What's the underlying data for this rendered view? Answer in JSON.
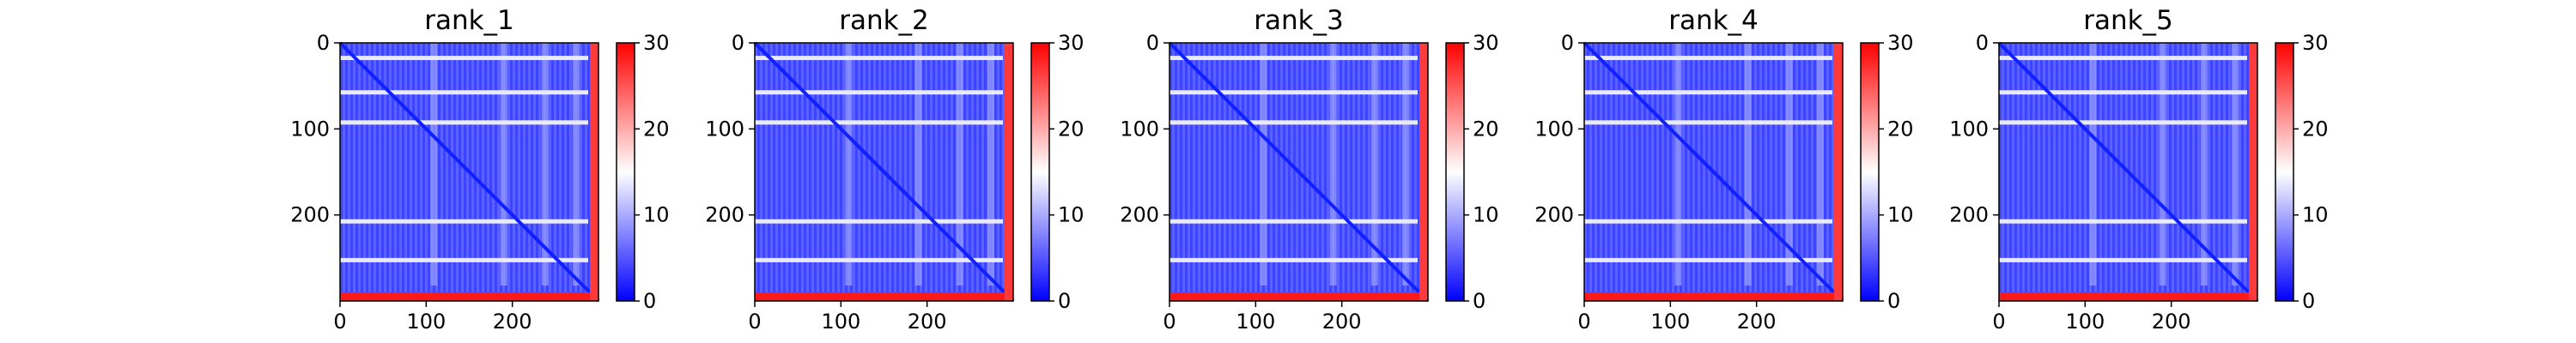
{
  "figure": {
    "background": "#ffffff"
  },
  "colorbar": {
    "ticks": [
      "0",
      "10",
      "20",
      "30"
    ],
    "colors": [
      "#0000ff",
      "#ffffff",
      "#ff0000"
    ],
    "range": [
      0,
      30
    ]
  },
  "panels": [
    {
      "title": "rank_1"
    },
    {
      "title": "rank_2"
    },
    {
      "title": "rank_3"
    },
    {
      "title": "rank_4"
    },
    {
      "title": "rank_5"
    }
  ],
  "chart_data": {
    "type": "heatmap",
    "matrix_size": 300,
    "x_ticks": [
      "0",
      "100",
      "200"
    ],
    "y_ticks": [
      "0",
      "100",
      "200"
    ],
    "x_tick_values": [
      0,
      100,
      200
    ],
    "y_tick_values": [
      0,
      100,
      200
    ],
    "colormap": "bwr",
    "vmin": 0,
    "vmax": 30,
    "panels": [
      {
        "title": "rank_1",
        "bright_rows": [
          15,
          55,
          90,
          205,
          250
        ],
        "red_rows": [
          290,
          291,
          292,
          293,
          294,
          295,
          296,
          297,
          298,
          299
        ],
        "red_cols": [
          290,
          291,
          292,
          293,
          294,
          295,
          296,
          297,
          298,
          299
        ]
      },
      {
        "title": "rank_2",
        "bright_rows": [
          15,
          55,
          90,
          205,
          250
        ],
        "red_rows": [
          290,
          291,
          292,
          293,
          294,
          295,
          296,
          297,
          298,
          299
        ],
        "red_cols": [
          290,
          291,
          292,
          293,
          294,
          295,
          296,
          297,
          298,
          299
        ]
      },
      {
        "title": "rank_3",
        "bright_rows": [
          15,
          55,
          90,
          205,
          250
        ],
        "red_rows": [
          290,
          291,
          292,
          293,
          294,
          295,
          296,
          297,
          298,
          299
        ],
        "red_cols": [
          290,
          291,
          292,
          293,
          294,
          295,
          296,
          297,
          298,
          299
        ]
      },
      {
        "title": "rank_4",
        "bright_rows": [
          15,
          55,
          90,
          205,
          250
        ],
        "red_rows": [
          290,
          291,
          292,
          293,
          294,
          295,
          296,
          297,
          298,
          299
        ],
        "red_cols": [
          290,
          291,
          292,
          293,
          294,
          295,
          296,
          297,
          298,
          299
        ]
      },
      {
        "title": "rank_5",
        "bright_rows": [
          15,
          55,
          90,
          205,
          250
        ],
        "red_rows": [
          290,
          291,
          292,
          293,
          294,
          295,
          296,
          297,
          298,
          299
        ],
        "red_cols": [
          290,
          291,
          292,
          293,
          294,
          295,
          296,
          297,
          298,
          299
        ]
      }
    ]
  }
}
